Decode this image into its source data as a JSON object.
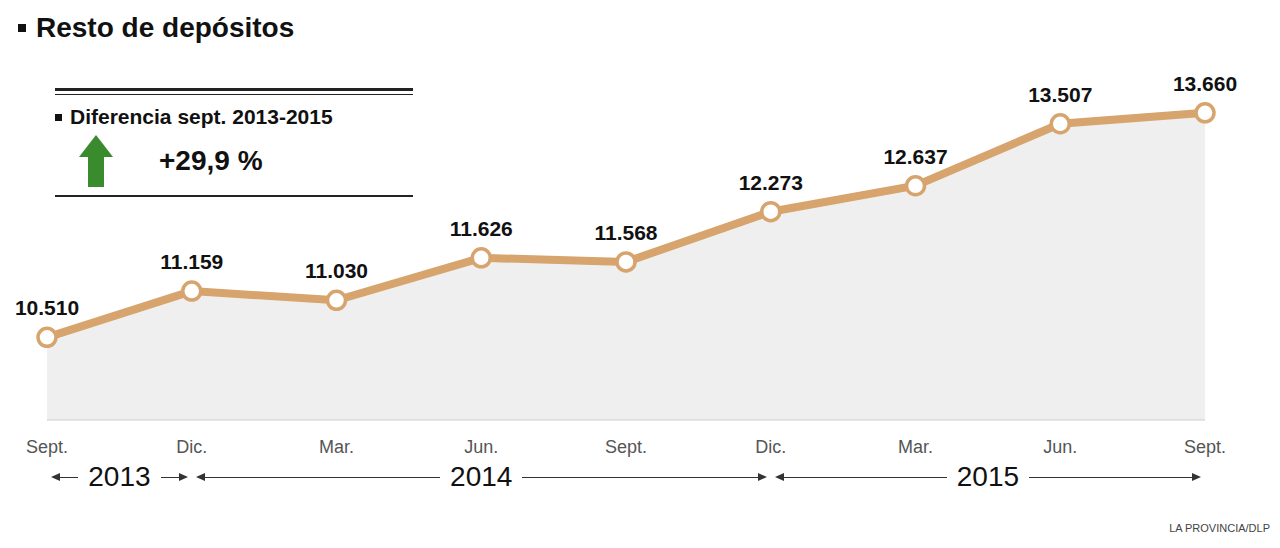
{
  "chart_data": {
    "type": "area",
    "title": "Resto de depósitos",
    "categories": [
      "Sept.",
      "Dic.",
      "Mar.",
      "Jun.",
      "Sept.",
      "Dic.",
      "Mar.",
      "Jun.",
      "Sept."
    ],
    "values": [
      10510,
      11159,
      11030,
      11626,
      11568,
      12273,
      12637,
      13507,
      13660
    ],
    "value_labels": [
      "10.510",
      "11.159",
      "11.030",
      "11.626",
      "11.568",
      "12.273",
      "12.637",
      "13.507",
      "13.660"
    ],
    "color": "#d6a46c",
    "ylim": [
      9350,
      14500
    ],
    "yticks": [],
    "tick_labels": "x",
    "data_labels": true,
    "marker": "circle",
    "annotation": {
      "label": "Diferencia sept. 2013-2015",
      "value": 29.9,
      "value_label": "+29,9 %"
    },
    "year_groups": [
      {
        "label": "2013",
        "start": 0,
        "end": 1
      },
      {
        "label": "2014",
        "start": 1,
        "end": 5
      },
      {
        "label": "2015",
        "start": 5,
        "end": 8
      }
    ],
    "source": "LA PROVINCIA/DLP"
  }
}
